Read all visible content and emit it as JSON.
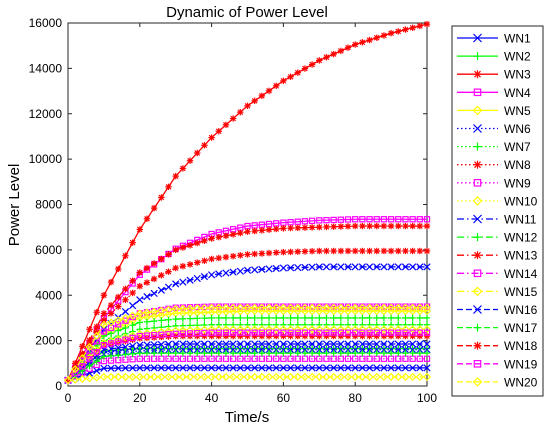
{
  "chart_data": {
    "type": "line",
    "title": "Dynamic of Power Level",
    "xlabel": "Time/s",
    "ylabel": "Power Level",
    "xlim": [
      0,
      100
    ],
    "ylim": [
      0,
      16000
    ],
    "xticks": [
      0,
      20,
      40,
      60,
      80,
      100
    ],
    "yticks": [
      0,
      2000,
      4000,
      6000,
      8000,
      10000,
      12000,
      14000,
      16000
    ],
    "grid": false,
    "legend_position": "right",
    "x": [
      0,
      10,
      20,
      30,
      40,
      50,
      60,
      70,
      80,
      90,
      100
    ],
    "series": [
      {
        "name": "WN1",
        "color": "#0000ff",
        "line": "solid",
        "marker": "x",
        "values": [
          250,
          780,
          800,
          800,
          800,
          800,
          800,
          800,
          800,
          800,
          800
        ]
      },
      {
        "name": "WN2",
        "color": "#00ff00",
        "line": "solid",
        "marker": "plus",
        "values": [
          250,
          1550,
          1650,
          1650,
          1650,
          1650,
          1650,
          1650,
          1650,
          1650,
          1650
        ]
      },
      {
        "name": "WN3",
        "color": "#ff0000",
        "line": "solid",
        "marker": "star",
        "values": [
          250,
          4000,
          6900,
          9250,
          10950,
          12350,
          13450,
          14350,
          15050,
          15550,
          15950
        ]
      },
      {
        "name": "WN4",
        "color": "#ff00ff",
        "line": "solid",
        "marker": "square",
        "values": [
          250,
          3000,
          4900,
          6050,
          6700,
          7050,
          7200,
          7300,
          7350,
          7350,
          7350
        ]
      },
      {
        "name": "WN5",
        "color": "#ffff00",
        "line": "solid",
        "marker": "diamond",
        "values": [
          250,
          2300,
          3000,
          3200,
          3250,
          3300,
          3300,
          3300,
          3300,
          3300,
          3300
        ]
      },
      {
        "name": "WN6",
        "color": "#0000ff",
        "line": "dotted",
        "marker": "x",
        "values": [
          250,
          1400,
          1550,
          1600,
          1600,
          1600,
          1600,
          1600,
          1600,
          1600,
          1600
        ]
      },
      {
        "name": "WN7",
        "color": "#00ff00",
        "line": "dotted",
        "marker": "plus",
        "values": [
          250,
          2000,
          2500,
          2650,
          2700,
          2700,
          2700,
          2700,
          2700,
          2700,
          2700
        ]
      },
      {
        "name": "WN8",
        "color": "#ff0000",
        "line": "dotted",
        "marker": "star",
        "values": [
          250,
          2900,
          4400,
          5200,
          5600,
          5800,
          5900,
          5950,
          5950,
          5950,
          5950
        ]
      },
      {
        "name": "WN9",
        "color": "#ff00ff",
        "line": "dotted",
        "marker": "square",
        "values": [
          250,
          1100,
          1200,
          1200,
          1200,
          1200,
          1200,
          1200,
          1200,
          1200,
          1200
        ]
      },
      {
        "name": "WN10",
        "color": "#ffff00",
        "line": "dotted",
        "marker": "diamond",
        "values": [
          250,
          400,
          400,
          400,
          400,
          400,
          400,
          400,
          400,
          400,
          400
        ]
      },
      {
        "name": "WN11",
        "color": "#0000ff",
        "line": "dashdot",
        "marker": "x",
        "values": [
          250,
          2500,
          3800,
          4500,
          4900,
          5100,
          5200,
          5250,
          5250,
          5250,
          5250
        ]
      },
      {
        "name": "WN12",
        "color": "#00ff00",
        "line": "dashdot",
        "marker": "plus",
        "values": [
          250,
          2200,
          2800,
          2950,
          3000,
          3000,
          3000,
          3000,
          3000,
          3000,
          3000
        ]
      },
      {
        "name": "WN13",
        "color": "#ff0000",
        "line": "dashdot",
        "marker": "star",
        "values": [
          250,
          1800,
          2100,
          2200,
          2200,
          2200,
          2200,
          2200,
          2200,
          2200,
          2200
        ]
      },
      {
        "name": "WN14",
        "color": "#ff00ff",
        "line": "dashdot",
        "marker": "square",
        "values": [
          250,
          2400,
          3200,
          3450,
          3500,
          3500,
          3500,
          3500,
          3500,
          3500,
          3500
        ]
      },
      {
        "name": "WN15",
        "color": "#ffff00",
        "line": "dashdot",
        "marker": "diamond",
        "values": [
          250,
          1900,
          2300,
          2450,
          2500,
          2500,
          2500,
          2500,
          2500,
          2500,
          2500
        ]
      },
      {
        "name": "WN16",
        "color": "#0000ff",
        "line": "dashed",
        "marker": "x",
        "values": [
          250,
          1600,
          1800,
          1850,
          1850,
          1850,
          1850,
          1850,
          1850,
          1850,
          1850
        ]
      },
      {
        "name": "WN17",
        "color": "#00ff00",
        "line": "dashed",
        "marker": "plus",
        "values": [
          250,
          1300,
          1450,
          1450,
          1450,
          1450,
          1450,
          1450,
          1450,
          1450,
          1450
        ]
      },
      {
        "name": "WN18",
        "color": "#ff0000",
        "line": "dashed",
        "marker": "star",
        "values": [
          250,
          3200,
          5000,
          6000,
          6500,
          6800,
          6950,
          7000,
          7050,
          7050,
          7050
        ]
      },
      {
        "name": "WN19",
        "color": "#ff00ff",
        "line": "dashed",
        "marker": "square",
        "values": [
          250,
          1800,
          2200,
          2300,
          2350,
          2350,
          2350,
          2350,
          2350,
          2350,
          2350
        ]
      },
      {
        "name": "WN20",
        "color": "#ffff00",
        "line": "dashed",
        "marker": "diamond",
        "values": [
          250,
          2700,
          3200,
          3400,
          3450,
          3450,
          3450,
          3450,
          3450,
          3450,
          3450
        ]
      }
    ]
  }
}
